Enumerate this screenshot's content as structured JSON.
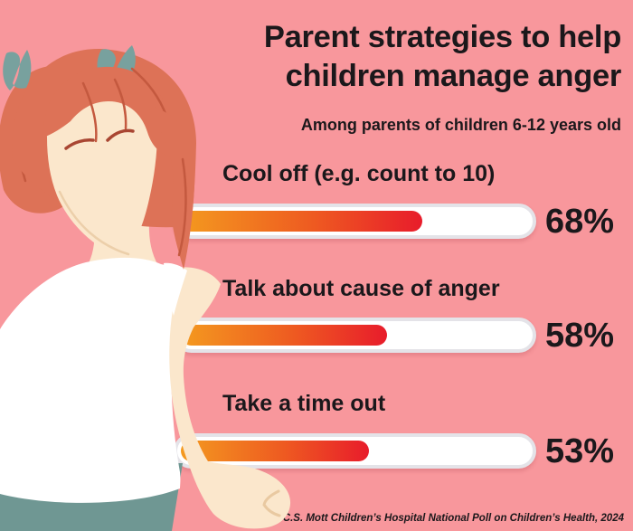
{
  "header": {
    "title": "Parent strategies to help\nchildren manage anger",
    "subtitle": "Among parents of children 6-12 years old"
  },
  "rows": [
    {
      "label": "Cool off (e.g. count to 10)",
      "value": 68,
      "value_label": "68%"
    },
    {
      "label": "Talk about cause of anger",
      "value": 58,
      "value_label": "58%"
    },
    {
      "label": "Take a time out",
      "value": 53,
      "value_label": "53%"
    }
  ],
  "source": "Source: C.S. Mott Children’s Hospital National Poll on Children’s Health, 2024",
  "figure": {
    "description": "angry girl with pigtails and clenched fist"
  },
  "palette": {
    "bg": "#F8979C",
    "text": "#1B181B",
    "track_fill": "#FFFFFF",
    "track_border": "#E4E3E8",
    "grad_start": "#F49A1F",
    "grad_mid": "#EE5A21",
    "grad_end": "#E81C2B",
    "hair": "#DD7257",
    "hair_line": "#C4593F",
    "skin": "#FBE7CC",
    "skin_line": "#E9C9A1",
    "shirt": "#FFFFFF",
    "bow": "#78A19E",
    "pants": "#6F9793",
    "eye": "#A94632"
  },
  "chart_data": {
    "type": "bar",
    "orientation": "horizontal",
    "title": "Parent strategies to help children manage anger",
    "subtitle": "Among parents of children 6-12 years old",
    "categories": [
      "Cool off (e.g. count to 10)",
      "Talk about cause of anger",
      "Take a time out"
    ],
    "values": [
      68,
      58,
      53
    ],
    "unit": "%",
    "xlim": [
      0,
      100
    ],
    "data_labels": [
      "68%",
      "58%",
      "53%"
    ],
    "legend": "none",
    "grid": "off",
    "source": "Source: C.S. Mott Children’s Hospital National Poll on Children’s Health, 2024"
  }
}
